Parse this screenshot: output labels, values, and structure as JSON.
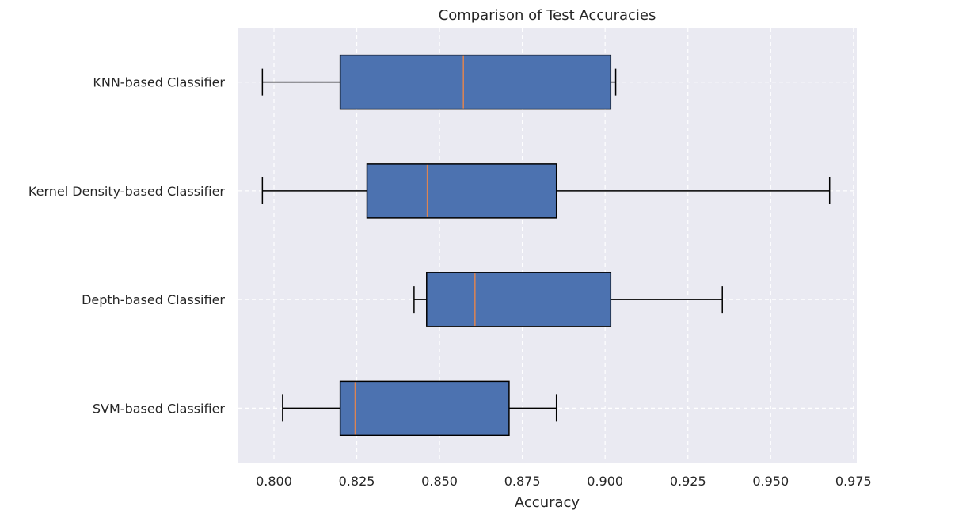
{
  "chart_data": {
    "type": "boxplot",
    "orientation": "horizontal",
    "title": "Comparison of Test Accuracies",
    "xlabel": "Accuracy",
    "ylabel": "",
    "xlim": [
      0.789,
      0.976
    ],
    "xticks": [
      0.8,
      0.825,
      0.85,
      0.875,
      0.9,
      0.925,
      0.95,
      0.975
    ],
    "xtick_labels": [
      "0.800",
      "0.825",
      "0.850",
      "0.875",
      "0.900",
      "0.925",
      "0.950",
      "0.975"
    ],
    "grid": true,
    "grid_style": "dashed",
    "categories": [
      "KNN-based Classifier",
      "Kernel Density-based Classifier",
      "Depth-based Classifier",
      "SVM-based Classifier"
    ],
    "boxes": [
      {
        "label": "KNN-based Classifier",
        "whisker_low": 0.7965,
        "q1": 0.82,
        "median": 0.8572,
        "q3": 0.9017,
        "whisker_high": 0.9032
      },
      {
        "label": "Kernel Density-based Classifier",
        "whisker_low": 0.7965,
        "q1": 0.8281,
        "median": 0.8463,
        "q3": 0.8853,
        "whisker_high": 0.9678
      },
      {
        "label": "Depth-based Classifier",
        "whisker_low": 0.8423,
        "q1": 0.8461,
        "median": 0.8607,
        "q3": 0.9017,
        "whisker_high": 0.9354
      },
      {
        "label": "SVM-based Classifier",
        "whisker_low": 0.8026,
        "q1": 0.82,
        "median": 0.8245,
        "q3": 0.871,
        "whisker_high": 0.8853
      }
    ],
    "colors": {
      "plot_background": "#eaeaf2",
      "grid": "#ffffff",
      "box_fill": "#4c72b0",
      "box_edge": "#000000",
      "median_line": "#dd8452",
      "whisker": "#000000",
      "text": "#262626"
    }
  }
}
